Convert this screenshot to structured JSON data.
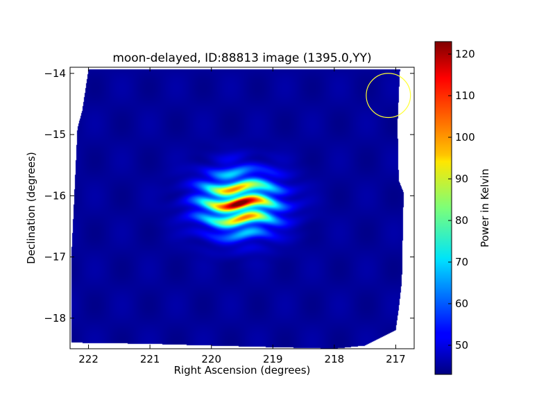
{
  "chart_data": {
    "type": "heatmap",
    "title": "moon-delayed, ID:88813 image (1395.0,YY)",
    "xlabel": "Right Ascension (degrees)",
    "ylabel": "Declination (degrees)",
    "colorbar_label": "Power in Kelvin",
    "xlim": [
      222.3,
      216.7
    ],
    "ylim": [
      -18.5,
      -13.9
    ],
    "x_ticks": [
      222,
      221,
      220,
      219,
      218,
      217
    ],
    "y_ticks": [
      -14,
      -15,
      -16,
      -17,
      -18
    ],
    "x_tick_labels": [
      "222",
      "221",
      "220",
      "219",
      "218",
      "217"
    ],
    "y_tick_labels": [
      "−14",
      "−15",
      "−16",
      "−17",
      "−18"
    ],
    "colorbar_range": [
      43,
      123
    ],
    "colorbar_ticks": [
      50,
      60,
      70,
      80,
      90,
      100,
      110,
      120
    ],
    "colorbar_tick_labels": [
      "50",
      "60",
      "70",
      "80",
      "90",
      "100",
      "110",
      "120"
    ],
    "colormap": "jet",
    "background_value": 45,
    "blobs": [
      {
        "ra": 219.55,
        "dec": -16.12,
        "peak_kelvin": 122
      },
      {
        "ra": 219.3,
        "dec": -16.0,
        "peak_kelvin": 110
      },
      {
        "ra": 219.35,
        "dec": -16.28,
        "peak_kelvin": 105
      },
      {
        "ra": 219.8,
        "dec": -15.85,
        "peak_kelvin": 95
      },
      {
        "ra": 219.8,
        "dec": -16.45,
        "peak_kelvin": 85
      }
    ],
    "beam_marker": {
      "ra": 217.12,
      "dec": -14.36,
      "radius_deg": 0.36,
      "color": "#ffff33"
    },
    "coverage_polygon": [
      [
        222.0,
        -13.93
      ],
      [
        216.93,
        -13.93
      ],
      [
        216.97,
        -14.85
      ],
      [
        216.95,
        -15.75
      ],
      [
        216.87,
        -15.95
      ],
      [
        216.9,
        -17.4
      ],
      [
        216.95,
        -17.85
      ],
      [
        217.0,
        -18.2
      ],
      [
        217.2,
        -18.3
      ],
      [
        217.5,
        -18.45
      ],
      [
        218.0,
        -18.5
      ],
      [
        220.0,
        -18.45
      ],
      [
        221.0,
        -18.42
      ],
      [
        222.28,
        -18.4
      ],
      [
        222.28,
        -17.0
      ],
      [
        222.25,
        -16.4
      ],
      [
        222.18,
        -14.9
      ],
      [
        222.1,
        -14.6
      ]
    ]
  }
}
